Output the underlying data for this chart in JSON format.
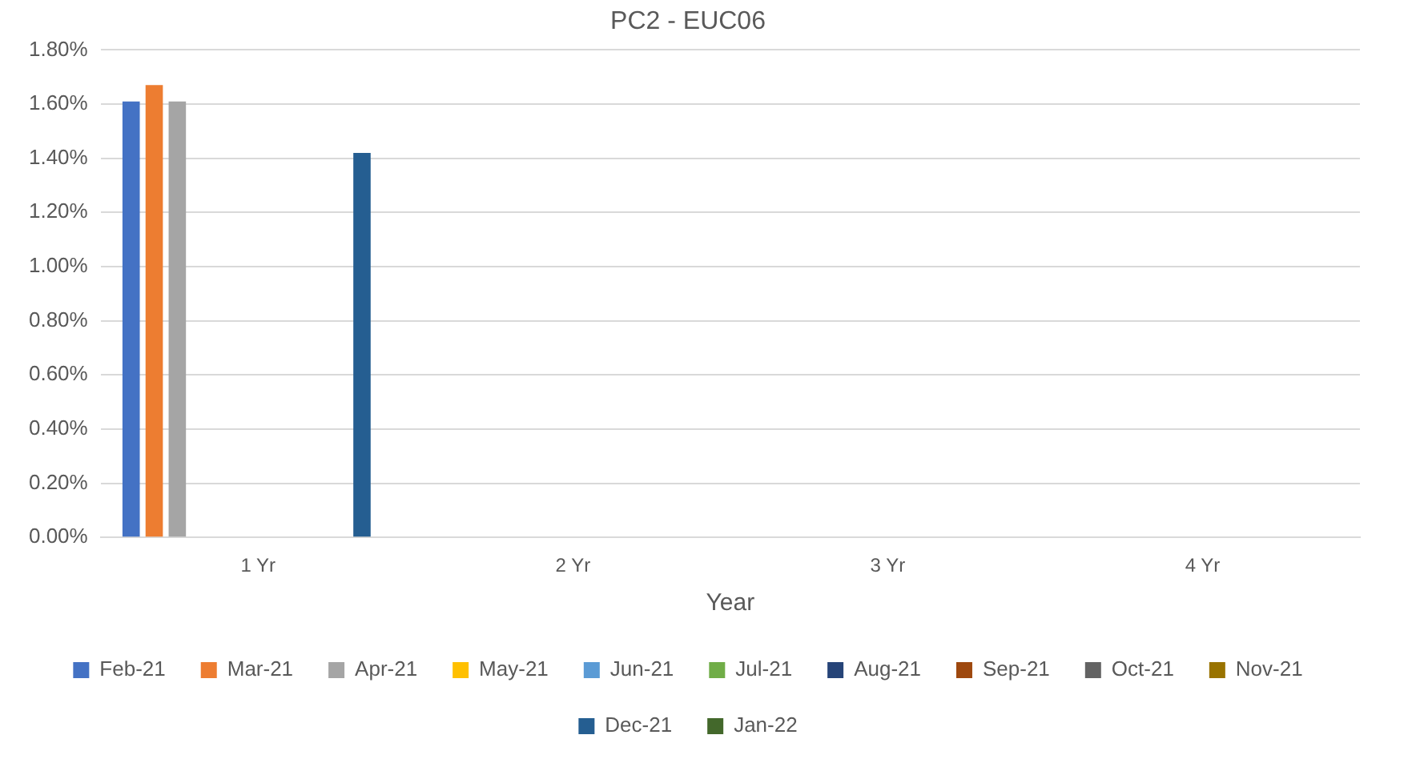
{
  "chart_data": {
    "type": "bar",
    "title": "PC2 - EUC06",
    "xlabel": "Year",
    "categories": [
      "1 Yr",
      "2 Yr",
      "3 Yr",
      "4 Yr"
    ],
    "series": [
      {
        "name": "Feb-21",
        "color": "#4472c4",
        "values": [
          1.61,
          null,
          null,
          null
        ]
      },
      {
        "name": "Mar-21",
        "color": "#ed7d31",
        "values": [
          1.67,
          null,
          null,
          null
        ]
      },
      {
        "name": "Apr-21",
        "color": "#a5a5a5",
        "values": [
          1.61,
          null,
          null,
          null
        ]
      },
      {
        "name": "May-21",
        "color": "#ffc000",
        "values": [
          null,
          null,
          null,
          null
        ]
      },
      {
        "name": "Jun-21",
        "color": "#5b9bd5",
        "values": [
          null,
          null,
          null,
          null
        ]
      },
      {
        "name": "Jul-21",
        "color": "#70ad47",
        "values": [
          null,
          null,
          null,
          null
        ]
      },
      {
        "name": "Aug-21",
        "color": "#264478",
        "values": [
          null,
          null,
          null,
          null
        ]
      },
      {
        "name": "Sep-21",
        "color": "#9e480e",
        "values": [
          null,
          null,
          null,
          null
        ]
      },
      {
        "name": "Oct-21",
        "color": "#636363",
        "values": [
          null,
          null,
          null,
          null
        ]
      },
      {
        "name": "Nov-21",
        "color": "#997300",
        "values": [
          null,
          null,
          null,
          null
        ]
      },
      {
        "name": "Dec-21",
        "color": "#255e91",
        "values": [
          1.42,
          null,
          null,
          null
        ]
      },
      {
        "name": "Jan-22",
        "color": "#43682b",
        "values": [
          null,
          null,
          null,
          null
        ]
      }
    ],
    "ylim": [
      0,
      1.8
    ],
    "yticks": [
      {
        "value": 0,
        "label": "0.00%"
      },
      {
        "value": 0.2,
        "label": "0.20%"
      },
      {
        "value": 0.4,
        "label": "0.40%"
      },
      {
        "value": 0.6,
        "label": "0.60%"
      },
      {
        "value": 0.8,
        "label": "0.80%"
      },
      {
        "value": 1.0,
        "label": "1.00%"
      },
      {
        "value": 1.2,
        "label": "1.20%"
      },
      {
        "value": 1.4,
        "label": "1.40%"
      },
      {
        "value": 1.6,
        "label": "1.60%"
      },
      {
        "value": 1.8,
        "label": "1.80%"
      }
    ],
    "grid": "y",
    "legend": "bottom"
  }
}
